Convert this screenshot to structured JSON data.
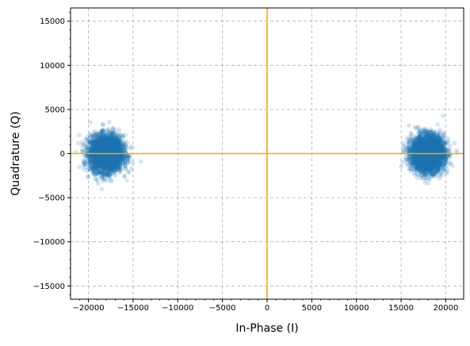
{
  "chart_data": {
    "type": "scatter",
    "title": "",
    "xlabel": "In-Phase (I)",
    "ylabel": "Quadrature (Q)",
    "xlim": [
      -22000,
      22000
    ],
    "ylim": [
      -16500,
      16500
    ],
    "xticks": [
      -20000,
      -15000,
      -10000,
      -5000,
      0,
      5000,
      10000,
      15000,
      20000
    ],
    "xtick_labels": [
      "−20000",
      "−15000",
      "−10000",
      "−5000",
      "0",
      "5000",
      "10000",
      "15000",
      "20000"
    ],
    "yticks": [
      -15000,
      -10000,
      -5000,
      0,
      5000,
      10000,
      15000
    ],
    "ytick_labels": [
      "−15000",
      "−10000",
      "−5000",
      "0",
      "5000",
      "10000",
      "15000"
    ],
    "grid": true,
    "reference_lines": {
      "x": 0,
      "y": 0,
      "color": "#ffa500"
    },
    "point_color": "#1f77b4",
    "point_alpha": 0.18,
    "clusters": [
      {
        "center": [
          -18000,
          0
        ],
        "spread_std": [
          900,
          1000
        ],
        "approx_points": 3500
      },
      {
        "center": [
          18000,
          0
        ],
        "spread_std": [
          900,
          1000
        ],
        "approx_points": 3500
      }
    ]
  }
}
